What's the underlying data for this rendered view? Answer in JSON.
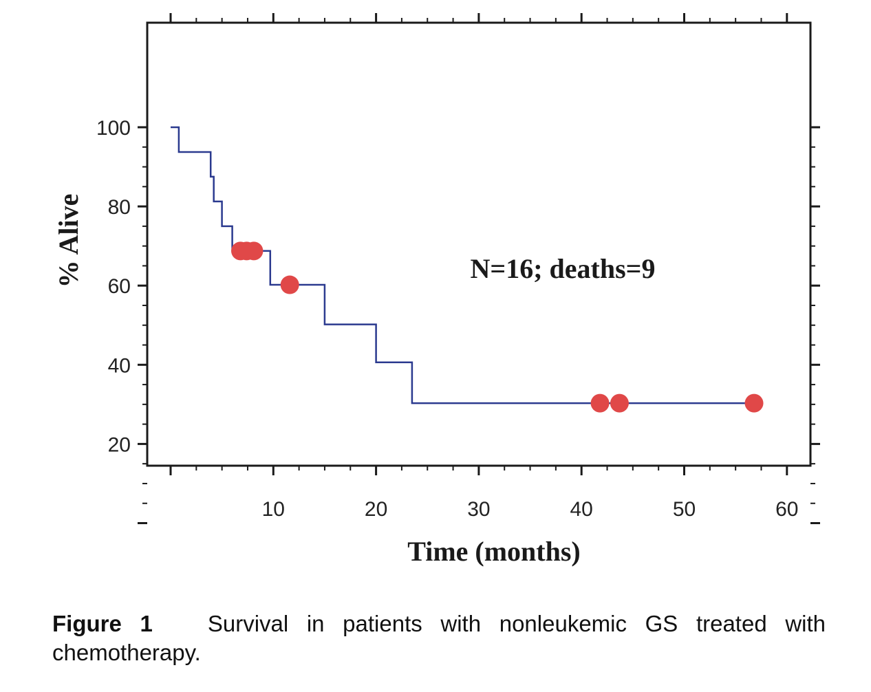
{
  "chart_data": {
    "type": "line",
    "subtype": "kaplan-meier-step",
    "xlabel": "Time (months)",
    "ylabel": "% Alive",
    "xlim": [
      0,
      62
    ],
    "ylim": [
      0,
      106
    ],
    "x_ticks": [
      10,
      20,
      30,
      40,
      50,
      60
    ],
    "y_ticks": [
      20,
      40,
      60,
      80,
      100
    ],
    "annotation": "N=16; deaths=9",
    "grid": false,
    "line_color": "#2b3a8f",
    "marker_color": "#e04848",
    "series": [
      {
        "steps": [
          [
            0,
            100
          ],
          [
            0.8,
            100
          ],
          [
            0.8,
            93.75
          ],
          [
            3.9,
            93.75
          ],
          [
            3.9,
            87.5
          ],
          [
            4.2,
            87.5
          ],
          [
            4.2,
            81.25
          ],
          [
            5.0,
            81.25
          ],
          [
            5.0,
            75.0
          ],
          [
            6.0,
            75.0
          ],
          [
            6.0,
            68.75
          ],
          [
            9.7,
            68.75
          ],
          [
            9.7,
            60.2
          ],
          [
            15.0,
            60.2
          ],
          [
            15.0,
            50.2
          ],
          [
            20.0,
            50.2
          ],
          [
            20.0,
            40.6
          ],
          [
            23.5,
            40.6
          ],
          [
            23.5,
            30.3
          ],
          [
            57.0,
            30.3
          ]
        ],
        "censored": [
          [
            6.8,
            68.75
          ],
          [
            7.4,
            68.75
          ],
          [
            8.1,
            68.75
          ],
          [
            11.6,
            60.2
          ],
          [
            41.8,
            30.3
          ],
          [
            43.7,
            30.3
          ],
          [
            56.8,
            30.3
          ]
        ]
      }
    ]
  },
  "caption": {
    "label": "Figure 1",
    "text": "Survival in patients with nonleukemic GS treated with chemotherapy."
  }
}
